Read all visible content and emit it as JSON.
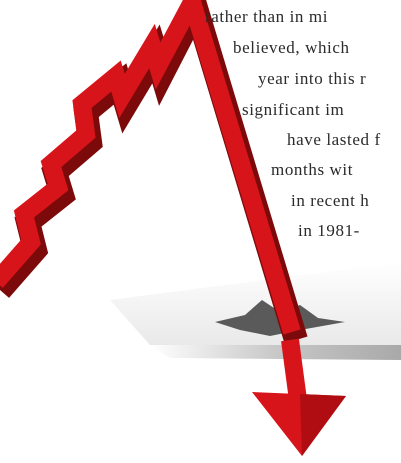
{
  "lines": [
    "rather than in mi",
    "believed, which",
    "year into this r",
    "significant im",
    "have lasted f",
    "months wit",
    "in recent h",
    "in 1981-"
  ]
}
